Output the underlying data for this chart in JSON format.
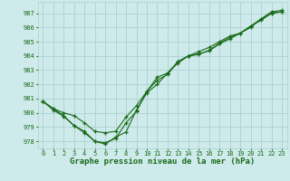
{
  "xlabel": "Graphe pression niveau de la mer (hPa)",
  "background_color": "#ceeaea",
  "grid_color": "#add0d0",
  "line_color": "#1a6b1a",
  "ylim": [
    977.5,
    987.8
  ],
  "xlim": [
    -0.5,
    23.5
  ],
  "yticks": [
    978,
    979,
    980,
    981,
    982,
    983,
    984,
    985,
    986,
    987
  ],
  "xticks": [
    0,
    1,
    2,
    3,
    4,
    5,
    6,
    7,
    8,
    9,
    10,
    11,
    12,
    13,
    14,
    15,
    16,
    17,
    18,
    19,
    20,
    21,
    22,
    23
  ],
  "line1_x": [
    0,
    1,
    2,
    3,
    4,
    5,
    6,
    7,
    8,
    9,
    10,
    11,
    12,
    13,
    14,
    15,
    16,
    17,
    18,
    19,
    20,
    21,
    22,
    23
  ],
  "line1_y": [
    980.8,
    980.3,
    979.8,
    979.1,
    978.6,
    978.0,
    977.9,
    978.2,
    979.3,
    980.1,
    981.5,
    982.3,
    982.7,
    983.6,
    984.0,
    984.1,
    984.4,
    984.9,
    985.3,
    985.6,
    986.1,
    986.6,
    987.0,
    987.1
  ],
  "line2_x": [
    0,
    1,
    2,
    3,
    4,
    5,
    6,
    7,
    8,
    9,
    10,
    11,
    12,
    13,
    14,
    15,
    16,
    17,
    18,
    19,
    20,
    21,
    22,
    23
  ],
  "line2_y": [
    980.8,
    980.3,
    980.0,
    979.8,
    979.3,
    978.7,
    978.6,
    978.7,
    979.7,
    980.5,
    981.5,
    982.5,
    982.8,
    983.6,
    984.0,
    984.3,
    984.6,
    985.0,
    985.4,
    985.6,
    986.1,
    986.5,
    987.0,
    987.1
  ],
  "line3_x": [
    0,
    1,
    2,
    3,
    4,
    5,
    6,
    7,
    8,
    9,
    10,
    11,
    12,
    13,
    14,
    15,
    16,
    17,
    18,
    19,
    20,
    21,
    22,
    23
  ],
  "line3_y": [
    980.8,
    980.2,
    979.75,
    979.1,
    978.7,
    978.0,
    977.8,
    978.3,
    978.65,
    980.2,
    981.4,
    982.0,
    982.8,
    983.5,
    984.0,
    984.15,
    984.35,
    984.85,
    985.2,
    985.6,
    986.0,
    986.6,
    987.1,
    987.2
  ],
  "marker": "+",
  "marker_size": 3,
  "linewidth": 0.8,
  "tick_fontsize": 5.0,
  "xlabel_fontsize": 6.5
}
